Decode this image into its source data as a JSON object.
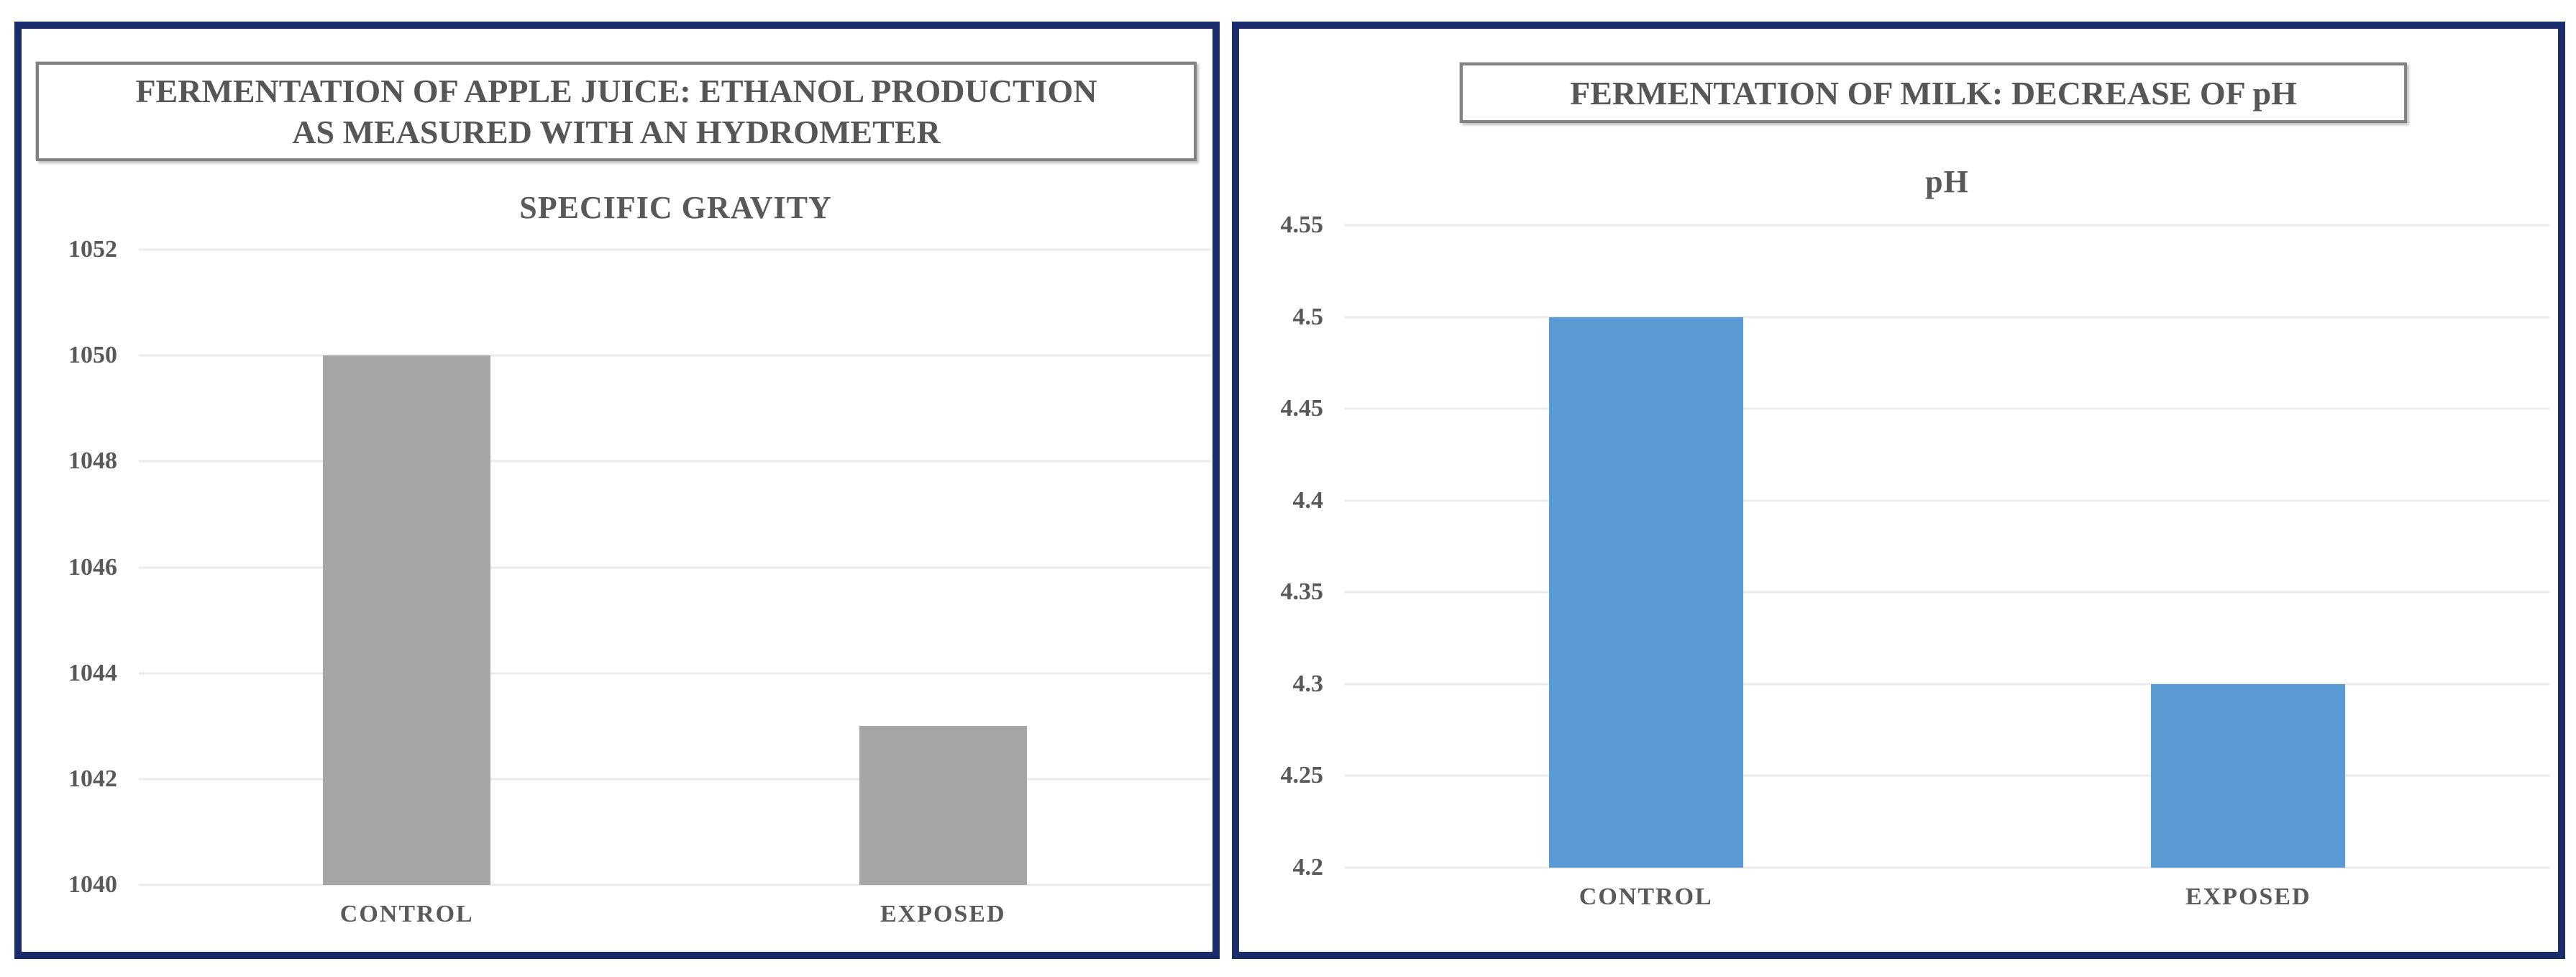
{
  "page": {
    "background": "#ffffff",
    "panel_border_color": "#1a2c69"
  },
  "chart_data": [
    {
      "type": "bar",
      "boxed_title_lines": [
        "FERMENTATION OF APPLE JUICE: ETHANOL PRODUCTION",
        "AS MEASURED WITH AN HYDROMETER"
      ],
      "axis_title": "SPECIFIC GRAVITY",
      "categories": [
        "CONTROL",
        "EXPOSED"
      ],
      "values": [
        1050,
        1043
      ],
      "ylim": [
        1040,
        1052
      ],
      "ytick_values": [
        1052,
        1050,
        1048,
        1046,
        1044,
        1042,
        1040
      ],
      "ytick_labels": [
        "1052",
        "1050",
        "1048",
        "1046",
        "1044",
        "1042",
        "1040"
      ],
      "bar_color": "#a6a6a6",
      "bar_width_pct": 15.6,
      "grid": true,
      "legend_position": "none",
      "text_color": "#595959"
    },
    {
      "type": "bar",
      "boxed_title_lines": [
        "FERMENTATION OF MILK: DECREASE OF pH",
        ""
      ],
      "axis_title": "pH",
      "categories": [
        "CONTROL",
        "EXPOSED"
      ],
      "values": [
        4.5,
        4.3
      ],
      "ylim": [
        4.2,
        4.55
      ],
      "ytick_values": [
        4.55,
        4.5,
        4.45,
        4.4,
        4.35,
        4.3,
        4.25,
        4.2
      ],
      "ytick_labels": [
        "4.55",
        "4.5",
        "4.45",
        "4.4",
        "4.35",
        "4.3",
        "4.25",
        "4.2"
      ],
      "bar_color": "#5b9bd5",
      "bar_width_pct": 16.1,
      "grid": true,
      "legend_position": "none",
      "text_color": "#595959"
    }
  ]
}
